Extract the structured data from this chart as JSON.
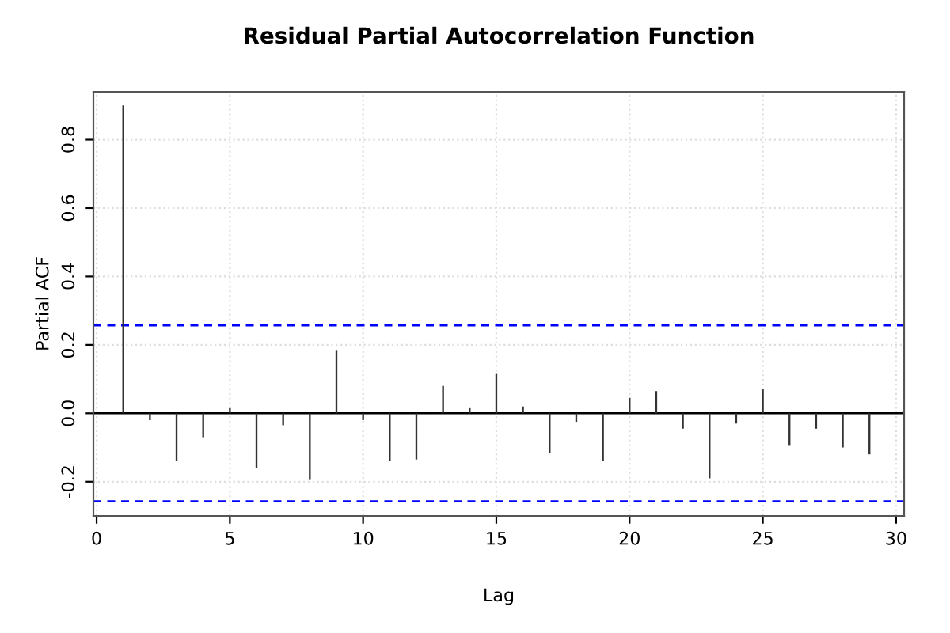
{
  "chart_data": {
    "type": "bar",
    "title": "Residual Partial Autocorrelation Function",
    "xlabel": "Lag",
    "ylabel": "Partial ACF",
    "x": [
      1,
      2,
      3,
      4,
      5,
      6,
      7,
      8,
      9,
      10,
      11,
      12,
      13,
      14,
      15,
      16,
      17,
      18,
      19,
      20,
      21,
      22,
      23,
      24,
      25,
      26,
      27,
      28,
      29
    ],
    "values": [
      0.9,
      -0.02,
      -0.14,
      -0.07,
      0.015,
      -0.16,
      -0.035,
      -0.195,
      0.185,
      -0.02,
      -0.14,
      -0.135,
      0.08,
      0.015,
      0.115,
      0.02,
      -0.115,
      -0.025,
      -0.14,
      0.045,
      0.065,
      -0.045,
      -0.19,
      -0.03,
      0.07,
      -0.095,
      -0.045,
      -0.1,
      -0.12
    ],
    "color": "#333333",
    "xlim": [
      -0.12,
      30.3
    ],
    "ylim": [
      -0.3,
      0.94
    ],
    "xticks": [
      0,
      5,
      10,
      15,
      20,
      25,
      30
    ],
    "yticks": [
      {
        "value": -0.2,
        "label": "-0.2"
      },
      {
        "value": 0,
        "label": "0.0"
      },
      0.2,
      0.4,
      0.6,
      0.8
    ],
    "ref_lines": [
      {
        "axis": "y",
        "value": 0.257,
        "color": "#0000ff",
        "line_style": "dashed"
      },
      {
        "axis": "y",
        "value": -0.257,
        "color": "#0000ff",
        "line_style": "dashed"
      },
      {
        "axis": "y",
        "value": 0,
        "color": "#000000",
        "line_style": "solid"
      }
    ],
    "grid": true
  }
}
